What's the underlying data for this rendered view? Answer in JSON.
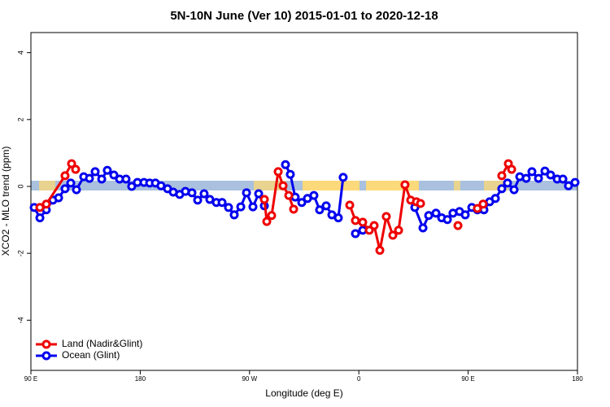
{
  "chart_data": {
    "type": "line",
    "title": "5N-10N June (Ver 10)   2015-01-01 to 2020-12-18",
    "x_label": "Longitude (deg E)",
    "y_label": "XCO2 - MLO trend (ppm)",
    "xlim": [
      90,
      540
    ],
    "xticks": [
      {
        "value": 90,
        "label": "90 E"
      },
      180,
      {
        "value": 270,
        "label": "90 W"
      },
      {
        "value": 360,
        "label": "0"
      },
      {
        "value": 450,
        "label": "90 E"
      },
      {
        "value": 540,
        "label": "180"
      }
    ],
    "ylim": [
      -5.5,
      4.6
    ],
    "yticks": [
      -4,
      -2,
      0,
      2,
      4
    ],
    "legend": "bottom-left",
    "series": [
      {
        "name": "Ocean (Glint)",
        "color": "#0000ee",
        "x": [
          92.7,
          97.4,
          102.7,
          108.1,
          112.8,
          118.1,
          122.8,
          127.5,
          133.5,
          138.2,
          142.9,
          148.3,
          152.9,
          158.3,
          163,
          168.3,
          173,
          177.7,
          183.1,
          187.8,
          192.5,
          197.1,
          202.5,
          207.2,
          212.5,
          217.2,
          222.6,
          227.3,
          232.6,
          237.3,
          242.7,
          247.4,
          252.7,
          257.4,
          262.8,
          267.5,
          272.8,
          277.5,
          282.2,
          291,
          299.6,
          303.6,
          307.6,
          313,
          317.7,
          323,
          327.7,
          333.1,
          337.8,
          343.1,
          347.1,
          352,
          357.2,
          363.2,
          385,
          406.1,
          412.8,
          417.5,
          423.5,
          428.2,
          432.9,
          437.5,
          442.9,
          447.6,
          453,
          457.6,
          463,
          467.7,
          472.4,
          477.7,
          482.4,
          487.8,
          492.5,
          497.8,
          502.5,
          507.9,
          513.2,
          517.9,
          523.3,
          528,
          532.6,
          538
        ],
        "values": [
          -0.63,
          -0.94,
          -0.7,
          -0.41,
          -0.34,
          -0.07,
          0.1,
          -0.1,
          0.29,
          0.24,
          0.44,
          0.22,
          0.48,
          0.34,
          0.22,
          0.22,
          0,
          0.12,
          0.12,
          0.1,
          0.1,
          0.02,
          -0.07,
          -0.17,
          -0.24,
          -0.15,
          -0.19,
          -0.41,
          -0.22,
          -0.39,
          -0.48,
          -0.48,
          -0.63,
          -0.85,
          -0.61,
          -0.19,
          -0.61,
          -0.22,
          -0.58,
          null,
          0.65,
          0.36,
          -0.32,
          -0.48,
          -0.36,
          -0.27,
          -0.7,
          -0.58,
          -0.85,
          -0.94,
          0.27,
          null,
          -1.41,
          -1.31,
          null,
          -0.63,
          -1.24,
          -0.87,
          -0.8,
          -0.94,
          -0.99,
          -0.8,
          -0.75,
          -0.85,
          -0.63,
          -0.7,
          -0.7,
          -0.46,
          -0.36,
          -0.07,
          0.1,
          -0.1,
          0.29,
          0.24,
          0.44,
          0.24,
          0.46,
          0.34,
          0.22,
          0.22,
          0.02,
          0.12
        ]
      },
      {
        "name": "Land (Nadir&Glint)",
        "color": "#ee0000",
        "x": [
          97.4,
          102.7,
          118.1,
          123.5,
          126.8,
          200,
          282.2,
          284.2,
          288.2,
          293.6,
          297.6,
          302.3,
          306.3,
          330,
          352.5,
          357.2,
          363.2,
          368.6,
          372.6,
          377.3,
          382.6,
          388,
          392.7,
          398,
          402.7,
          407.4,
          410.8,
          425,
          441.6,
          450,
          457.6,
          462.3,
          470,
          477.7,
          483.1,
          485.8
        ],
        "values": [
          -0.63,
          -0.53,
          0.32,
          0.68,
          0.51,
          null,
          -0.39,
          -1.05,
          -0.87,
          0.44,
          0.02,
          -0.27,
          -0.68,
          null,
          -0.56,
          -1.02,
          -1.07,
          -1.31,
          -1.17,
          -1.91,
          -0.9,
          -1.46,
          -1.31,
          0.05,
          -0.41,
          -0.46,
          -0.51,
          null,
          -1.17,
          null,
          -0.66,
          -0.53,
          null,
          0.32,
          0.68,
          0.51
        ]
      }
    ]
  }
}
